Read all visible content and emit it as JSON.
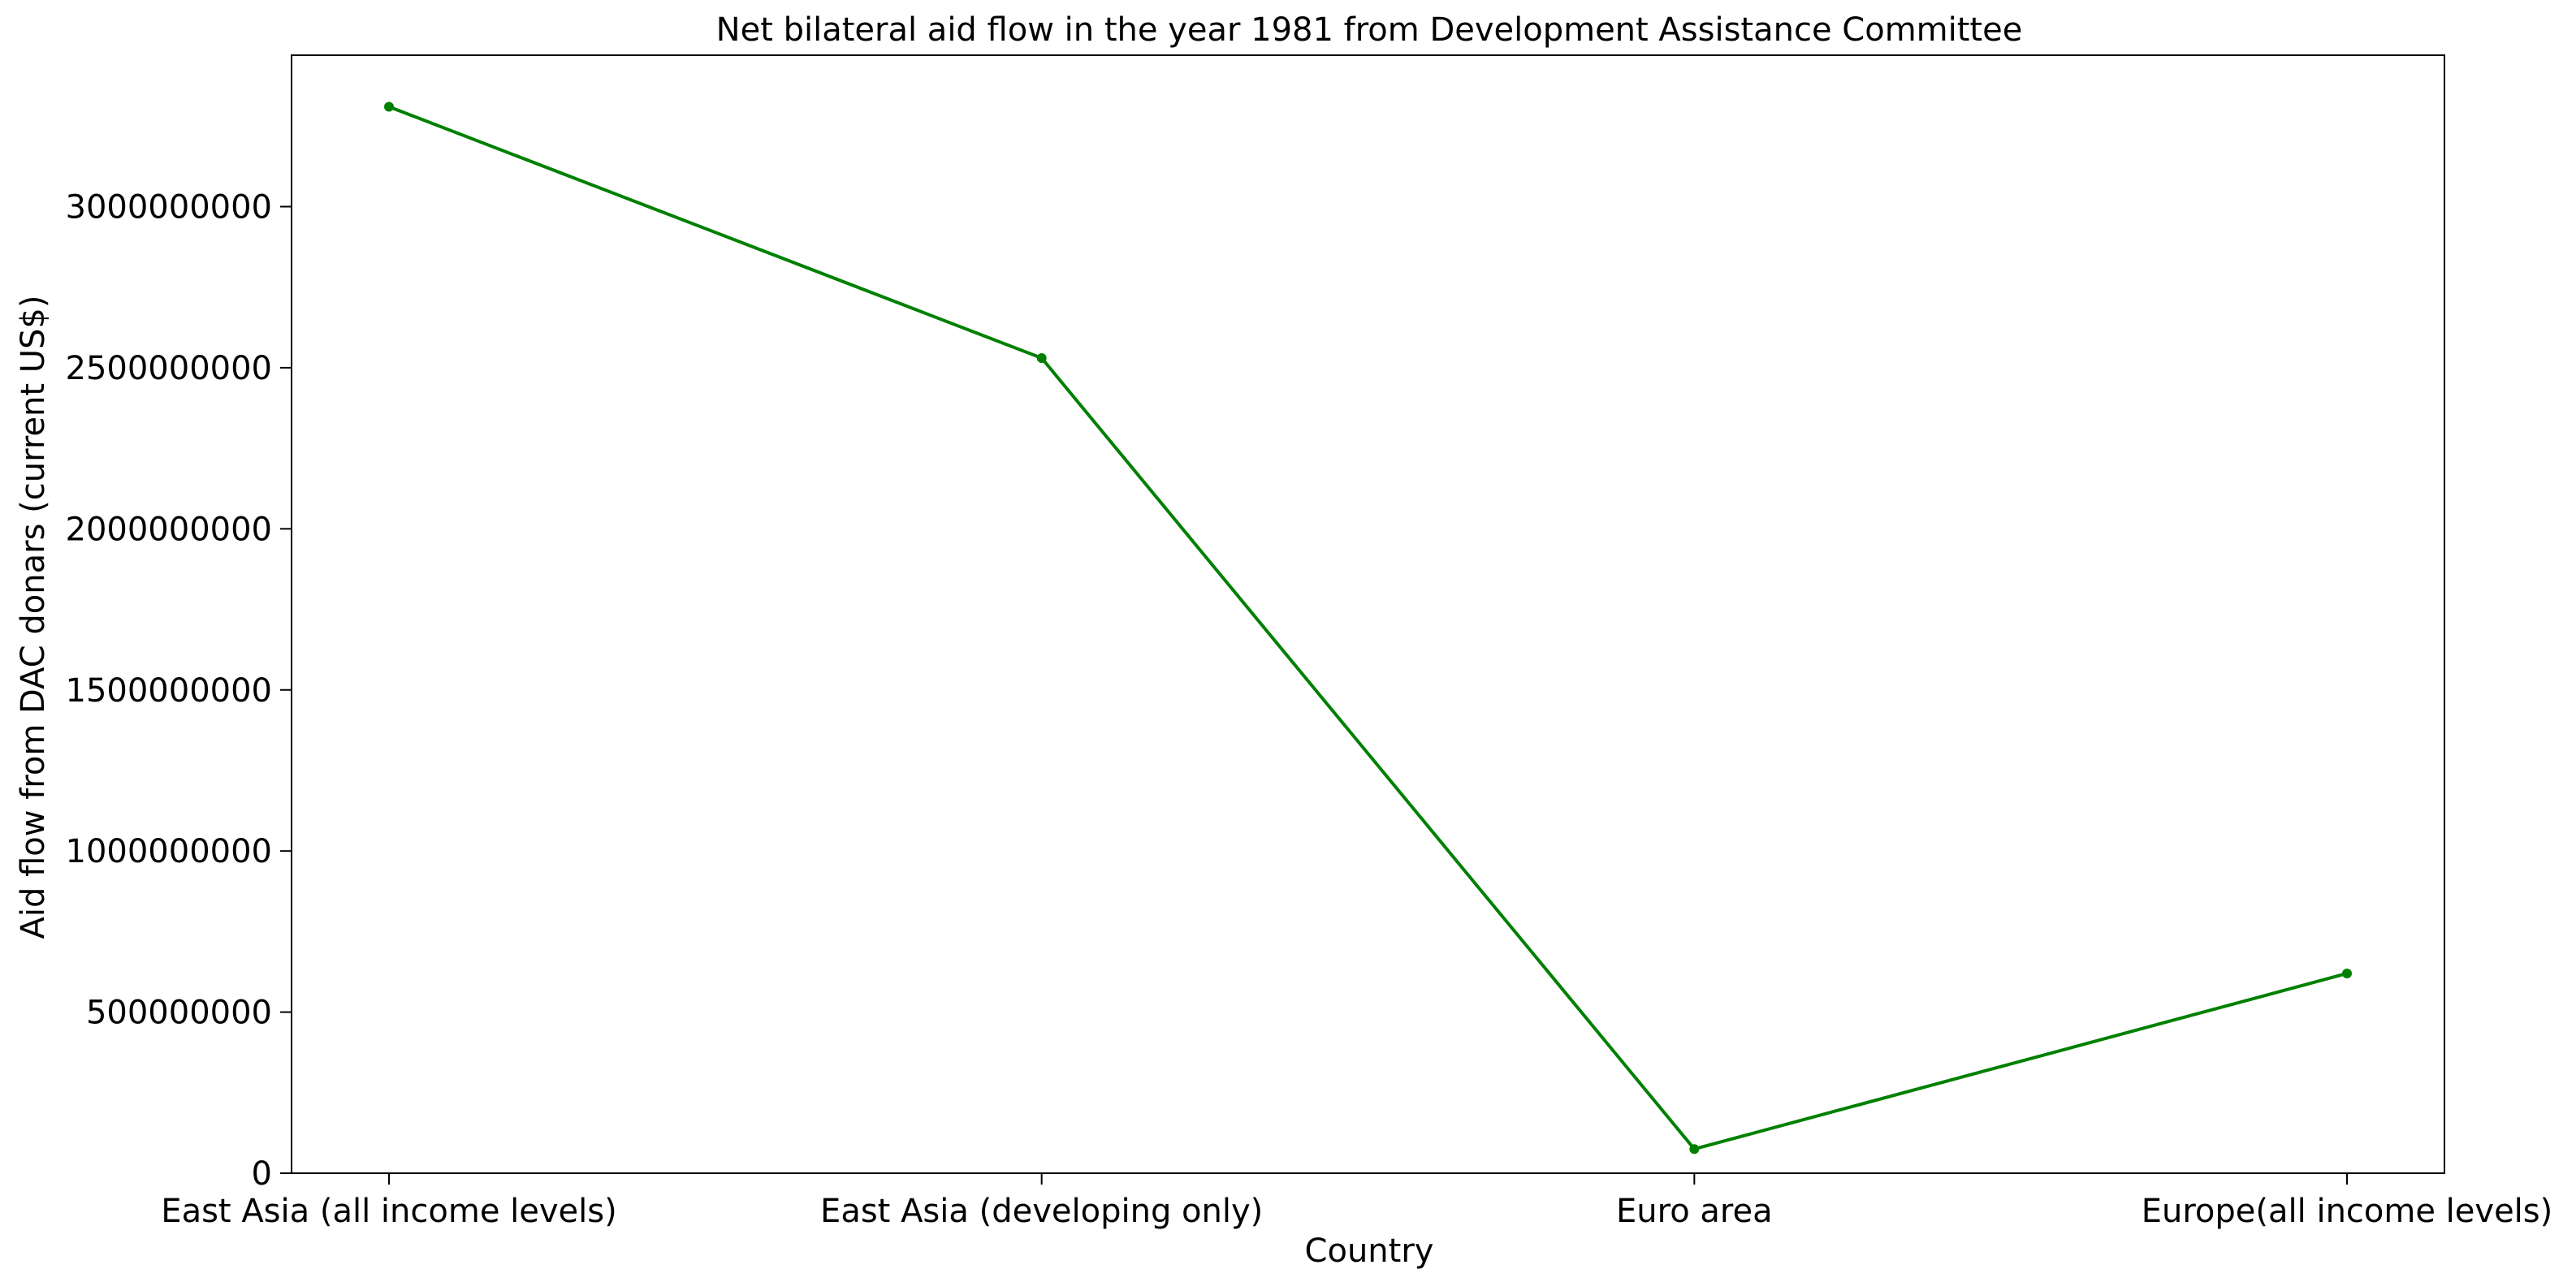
{
  "chart_data": {
    "type": "line",
    "title": "Net bilateral aid flow in the year 1981 from Development Assistance Committee",
    "xlabel": "Country",
    "ylabel": "Aid flow from DAC donars (current US$)",
    "categories": [
      "East Asia (all income levels)",
      "East Asia (developing only)",
      "Euro area",
      "Europe(all income levels)"
    ],
    "series": [
      {
        "values": [
          3310000000,
          2530000000,
          75000000,
          620000000
        ],
        "color": "#008000"
      }
    ],
    "ylim": [
      0,
      3470000000
    ],
    "yticks": [
      0,
      500000000,
      1000000000,
      1500000000,
      2000000000,
      2500000000,
      3000000000
    ],
    "ytick_labels": [
      "0",
      "500000000",
      "1000000000",
      "1500000000",
      "2000000000",
      "2500000000",
      "3000000000"
    ],
    "grid": false,
    "legend": false,
    "marker": "circle"
  }
}
